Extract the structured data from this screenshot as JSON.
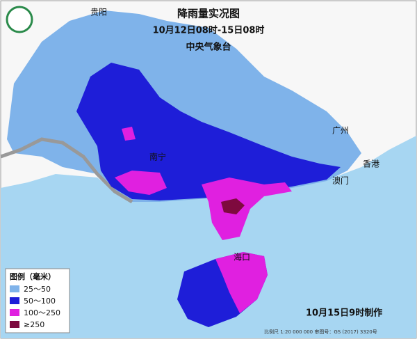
{
  "header": {
    "title": "降雨量实况图",
    "period": "10月12日08时-15日08时",
    "agency": "中央气象台"
  },
  "cities": [
    "贵阳",
    "广州",
    "南宁",
    "香港",
    "澳门",
    "海口"
  ],
  "legend": {
    "title": "图例（毫米）",
    "items": [
      "25～50",
      "50～100",
      "100～250",
      "≥250"
    ]
  },
  "footer": {
    "made": "10月15日9时制作",
    "scale": "比例尺 1:20 000 000   审图号：GS (2017) 3320号"
  }
}
